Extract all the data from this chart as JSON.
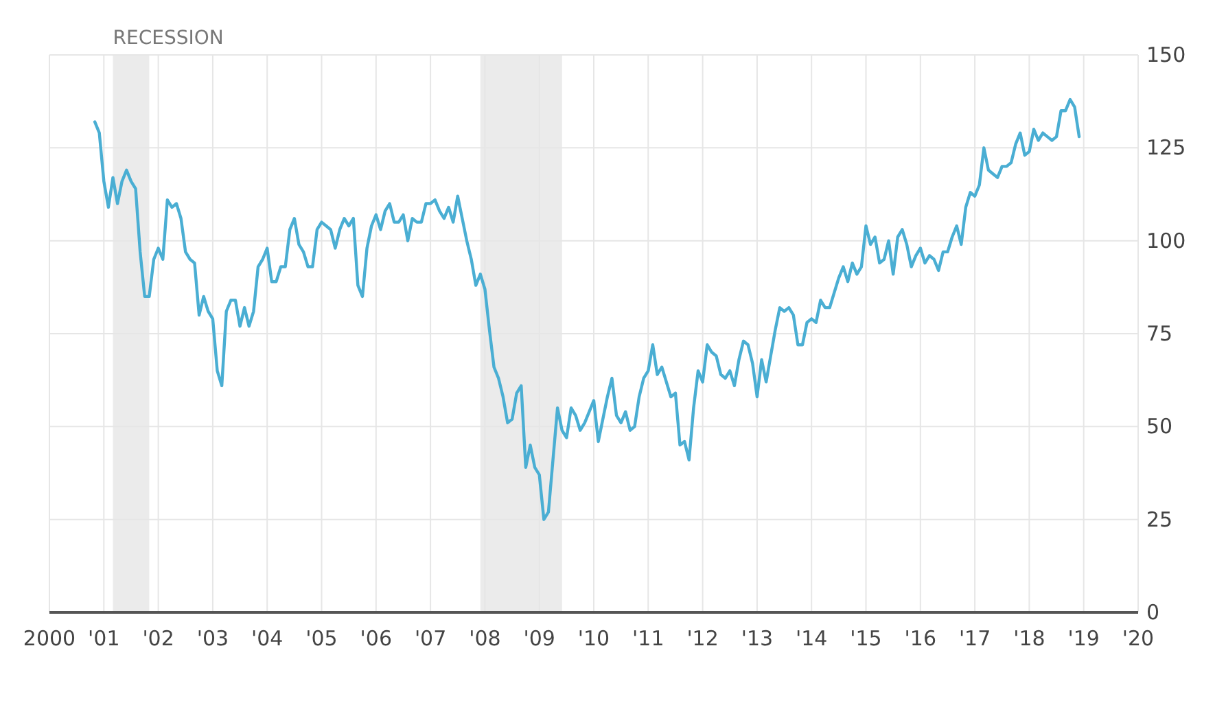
{
  "chart_data": {
    "type": "line",
    "x": [
      "2000-11",
      "2000-12",
      "2001-01",
      "2001-02",
      "2001-03",
      "2001-04",
      "2001-05",
      "2001-06",
      "2001-07",
      "2001-08",
      "2001-09",
      "2001-10",
      "2001-11",
      "2001-12",
      "2002-01",
      "2002-02",
      "2002-03",
      "2002-04",
      "2002-05",
      "2002-06",
      "2002-07",
      "2002-08",
      "2002-09",
      "2002-10",
      "2002-11",
      "2002-12",
      "2003-01",
      "2003-02",
      "2003-03",
      "2003-04",
      "2003-05",
      "2003-06",
      "2003-07",
      "2003-08",
      "2003-09",
      "2003-10",
      "2003-11",
      "2003-12",
      "2004-01",
      "2004-02",
      "2004-03",
      "2004-04",
      "2004-05",
      "2004-06",
      "2004-07",
      "2004-08",
      "2004-09",
      "2004-10",
      "2004-11",
      "2004-12",
      "2005-01",
      "2005-02",
      "2005-03",
      "2005-04",
      "2005-05",
      "2005-06",
      "2005-07",
      "2005-08",
      "2005-09",
      "2005-10",
      "2005-11",
      "2005-12",
      "2006-01",
      "2006-02",
      "2006-03",
      "2006-04",
      "2006-05",
      "2006-06",
      "2006-07",
      "2006-08",
      "2006-09",
      "2006-10",
      "2006-11",
      "2006-12",
      "2007-01",
      "2007-02",
      "2007-03",
      "2007-04",
      "2007-05",
      "2007-06",
      "2007-07",
      "2007-08",
      "2007-09",
      "2007-10",
      "2007-11",
      "2007-12",
      "2008-01",
      "2008-02",
      "2008-03",
      "2008-04",
      "2008-05",
      "2008-06",
      "2008-07",
      "2008-08",
      "2008-09",
      "2008-10",
      "2008-11",
      "2008-12",
      "2009-01",
      "2009-02",
      "2009-03",
      "2009-04",
      "2009-05",
      "2009-06",
      "2009-07",
      "2009-08",
      "2009-09",
      "2009-10",
      "2009-11",
      "2009-12",
      "2010-01",
      "2010-02",
      "2010-03",
      "2010-04",
      "2010-05",
      "2010-06",
      "2010-07",
      "2010-08",
      "2010-09",
      "2010-10",
      "2010-11",
      "2010-12",
      "2011-01",
      "2011-02",
      "2011-03",
      "2011-04",
      "2011-05",
      "2011-06",
      "2011-07",
      "2011-08",
      "2011-09",
      "2011-10",
      "2011-11",
      "2011-12",
      "2012-01",
      "2012-02",
      "2012-03",
      "2012-04",
      "2012-05",
      "2012-06",
      "2012-07",
      "2012-08",
      "2012-09",
      "2012-10",
      "2012-11",
      "2012-12",
      "2013-01",
      "2013-02",
      "2013-03",
      "2013-04",
      "2013-05",
      "2013-06",
      "2013-07",
      "2013-08",
      "2013-09",
      "2013-10",
      "2013-11",
      "2013-12",
      "2014-01",
      "2014-02",
      "2014-03",
      "2014-04",
      "2014-05",
      "2014-06",
      "2014-07",
      "2014-08",
      "2014-09",
      "2014-10",
      "2014-11",
      "2014-12",
      "2015-01",
      "2015-02",
      "2015-03",
      "2015-04",
      "2015-05",
      "2015-06",
      "2015-07",
      "2015-08",
      "2015-09",
      "2015-10",
      "2015-11",
      "2015-12",
      "2016-01",
      "2016-02",
      "2016-03",
      "2016-04",
      "2016-05",
      "2016-06",
      "2016-07",
      "2016-08",
      "2016-09",
      "2016-10",
      "2016-11",
      "2016-12",
      "2017-01",
      "2017-02",
      "2017-03",
      "2017-04",
      "2017-05",
      "2017-06",
      "2017-07",
      "2017-08",
      "2017-09",
      "2017-10",
      "2017-11",
      "2017-12",
      "2018-01",
      "2018-02",
      "2018-03",
      "2018-04",
      "2018-05",
      "2018-06",
      "2018-07",
      "2018-08",
      "2018-09",
      "2018-10",
      "2018-11",
      "2018-12"
    ],
    "series": [
      {
        "color": "#4aaed3",
        "values": [
          132,
          129,
          116,
          109,
          117,
          110,
          116,
          119,
          116,
          114,
          97,
          85,
          85,
          95,
          98,
          95,
          111,
          109,
          110,
          106,
          97,
          95,
          94,
          80,
          85,
          81,
          79,
          65,
          61,
          81,
          84,
          84,
          77,
          82,
          77,
          81,
          93,
          95,
          98,
          89,
          89,
          93,
          93,
          103,
          106,
          99,
          97,
          93,
          93,
          103,
          105,
          104,
          103,
          98,
          103,
          106,
          104,
          106,
          88,
          85,
          98,
          104,
          107,
          103,
          108,
          110,
          105,
          105,
          107,
          100,
          106,
          105,
          105,
          110,
          110,
          111,
          108,
          106,
          109,
          105,
          112,
          106,
          100,
          95,
          88,
          91,
          87,
          76,
          66,
          63,
          58,
          51,
          52,
          59,
          61,
          39,
          45,
          39,
          37,
          25,
          27,
          41,
          55,
          49,
          47,
          55,
          53,
          49,
          51,
          54,
          57,
          46,
          52,
          58,
          63,
          53,
          51,
          54,
          49,
          50,
          58,
          63,
          65,
          72,
          64,
          66,
          62,
          58,
          59,
          45,
          46,
          41,
          55,
          65,
          62,
          72,
          70,
          69,
          64,
          63,
          65,
          61,
          68,
          73,
          72,
          67,
          58,
          68,
          62,
          69,
          76,
          82,
          81,
          82,
          80,
          72,
          72,
          78,
          79,
          78,
          84,
          82,
          82,
          86,
          90,
          93,
          89,
          94,
          91,
          93,
          104,
          99,
          101,
          94,
          95,
          100,
          91,
          101,
          103,
          99,
          93,
          96,
          98,
          94,
          96,
          95,
          92,
          97,
          97,
          101,
          104,
          99,
          109,
          113,
          112,
          115,
          125,
          119,
          118,
          117,
          120,
          120,
          121,
          126,
          129,
          123,
          124,
          130,
          127,
          129,
          128,
          127,
          128,
          135,
          135,
          138,
          136,
          128
        ]
      }
    ],
    "xlim": [
      "2000",
      "2020"
    ],
    "xticks": [
      {
        "value": "2000",
        "label": "2000"
      },
      {
        "value": "2001",
        "label": "'01"
      },
      {
        "value": "2002",
        "label": "'02"
      },
      {
        "value": "2003",
        "label": "'03"
      },
      {
        "value": "2004",
        "label": "'04"
      },
      {
        "value": "2005",
        "label": "'05"
      },
      {
        "value": "2006",
        "label": "'06"
      },
      {
        "value": "2007",
        "label": "'07"
      },
      {
        "value": "2008",
        "label": "'08"
      },
      {
        "value": "2009",
        "label": "'09"
      },
      {
        "value": "2010",
        "label": "'10"
      },
      {
        "value": "2011",
        "label": "'11"
      },
      {
        "value": "2012",
        "label": "'12"
      },
      {
        "value": "2013",
        "label": "'13"
      },
      {
        "value": "2014",
        "label": "'14"
      },
      {
        "value": "2015",
        "label": "'15"
      },
      {
        "value": "2016",
        "label": "'16"
      },
      {
        "value": "2017",
        "label": "'17"
      },
      {
        "value": "2018",
        "label": "'18"
      },
      {
        "value": "2019",
        "label": "'19"
      },
      {
        "value": "2020",
        "label": "'20"
      }
    ],
    "ylim": [
      0,
      150
    ],
    "yticks": [
      0,
      25,
      50,
      75,
      100,
      125,
      150
    ],
    "grid": true,
    "bands": [
      {
        "axis": "x",
        "from": "2001-03",
        "to": "2001-11",
        "label": "RECESSION",
        "color": "#ebebeb"
      },
      {
        "axis": "x",
        "from": "2007-12",
        "to": "2009-06",
        "color": "#ebebeb"
      }
    ]
  }
}
